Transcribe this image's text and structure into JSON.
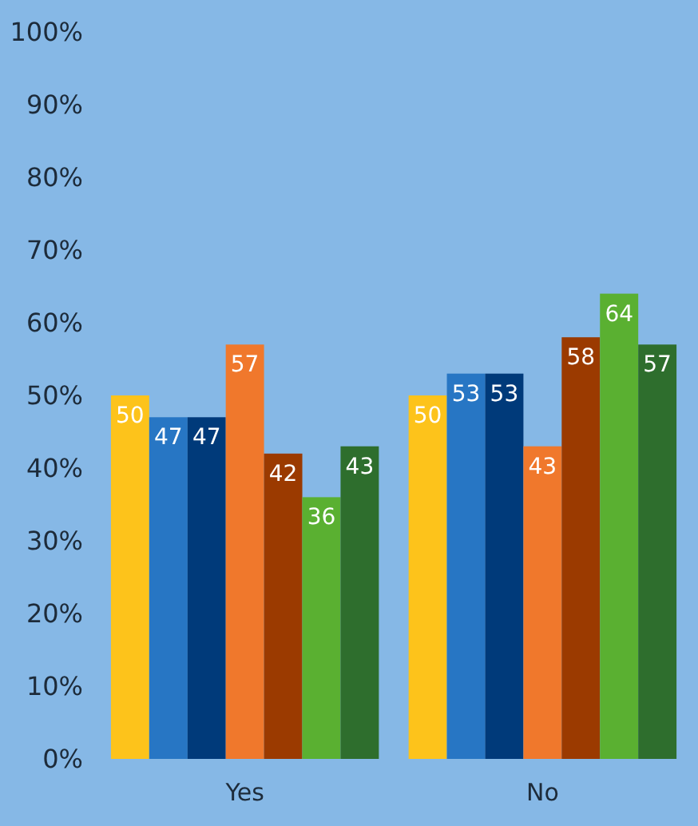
{
  "chart_data": {
    "type": "bar",
    "categories": [
      "Yes",
      "No"
    ],
    "series": [
      {
        "color": "#fdc31b",
        "values": [
          50,
          50
        ]
      },
      {
        "color": "#2776c4",
        "values": [
          47,
          53
        ]
      },
      {
        "color": "#003a7a",
        "values": [
          47,
          53
        ]
      },
      {
        "color": "#f0782c",
        "values": [
          57,
          43
        ]
      },
      {
        "color": "#9b3a00",
        "values": [
          42,
          58
        ]
      },
      {
        "color": "#5ab031",
        "values": [
          36,
          64
        ]
      },
      {
        "color": "#2e6e2d",
        "values": [
          43,
          57
        ]
      }
    ],
    "ylim": [
      0,
      100
    ],
    "yticks": [
      {
        "value": 0,
        "label": "0%"
      },
      {
        "value": 10,
        "label": "10%"
      },
      {
        "value": 20,
        "label": "20%"
      },
      {
        "value": 30,
        "label": "30%"
      },
      {
        "value": 40,
        "label": "40%"
      },
      {
        "value": 50,
        "label": "50%"
      },
      {
        "value": 60,
        "label": "60%"
      },
      {
        "value": 70,
        "label": "70%"
      },
      {
        "value": 80,
        "label": "80%"
      },
      {
        "value": 90,
        "label": "90%"
      },
      {
        "value": 100,
        "label": "100%"
      }
    ],
    "grid": false,
    "data_labels": true
  }
}
